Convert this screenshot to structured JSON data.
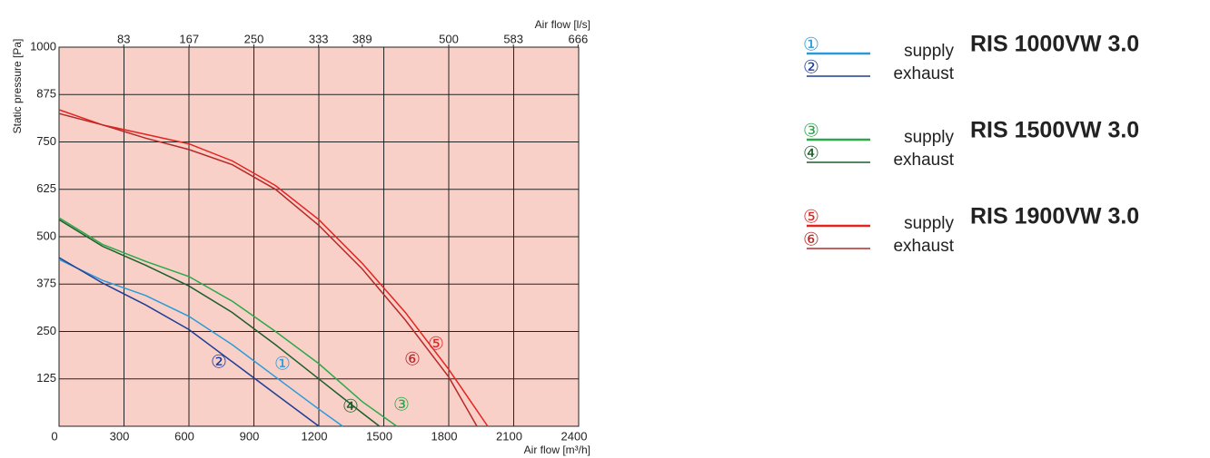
{
  "chart_data": {
    "type": "line",
    "y_label": "Static pressure [Pa]",
    "x_label": "Air flow [m³/h]",
    "x2_label": "Air flow [l/s]",
    "xlim": [
      0,
      2400
    ],
    "xticks": [
      0,
      300,
      600,
      900,
      1200,
      1500,
      1800,
      2100,
      2400
    ],
    "x2lim": [
      0,
      666.7
    ],
    "x2ticks": [
      83,
      167,
      250,
      333,
      389,
      500,
      583,
      666
    ],
    "ylim": [
      0,
      1000
    ],
    "yticks": [
      125,
      250,
      375,
      500,
      625,
      750,
      875,
      1000
    ],
    "grid": true,
    "background": "#f9d0c8",
    "series": [
      {
        "label": "①",
        "name": "supply",
        "color": "#2a9ad8",
        "x": [
          0,
          200,
          400,
          600,
          800,
          1000,
          1200,
          1310
        ],
        "values": [
          440,
          385,
          345,
          290,
          215,
          130,
          45,
          0
        ]
      },
      {
        "label": "②",
        "name": "exhaust",
        "color": "#1f3e96",
        "x": [
          0,
          200,
          400,
          600,
          800,
          1000,
          1200
        ],
        "values": [
          445,
          378,
          320,
          255,
          170,
          85,
          0
        ]
      },
      {
        "label": "③",
        "name": "supply",
        "color": "#2aa84a",
        "x": [
          0,
          200,
          400,
          600,
          800,
          1000,
          1200,
          1400,
          1560
        ],
        "values": [
          550,
          480,
          435,
          395,
          330,
          250,
          165,
          65,
          0
        ]
      },
      {
        "label": "④",
        "name": "exhaust",
        "color": "#1d5e2b",
        "x": [
          0,
          200,
          400,
          600,
          800,
          1000,
          1200,
          1400,
          1480
        ],
        "values": [
          545,
          475,
          425,
          370,
          300,
          215,
          125,
          35,
          0
        ]
      },
      {
        "label": "⑤",
        "name": "supply",
        "color": "#e52420",
        "x": [
          0,
          200,
          400,
          600,
          800,
          1000,
          1200,
          1400,
          1600,
          1800,
          1980
        ],
        "values": [
          835,
          795,
          770,
          745,
          700,
          635,
          545,
          430,
          300,
          150,
          0
        ]
      },
      {
        "label": "⑥",
        "name": "exhaust",
        "color": "#b52a2a",
        "x": [
          0,
          200,
          400,
          600,
          800,
          1000,
          1200,
          1400,
          1600,
          1800,
          1930
        ],
        "values": [
          825,
          795,
          760,
          730,
          690,
          625,
          530,
          415,
          280,
          130,
          0
        ]
      }
    ],
    "legend_groups": [
      {
        "title": "RIS 1000VW 3.0"
      },
      {
        "title": "RIS 1500VW 3.0"
      },
      {
        "title": "RIS 1900VW 3.0"
      }
    ]
  }
}
